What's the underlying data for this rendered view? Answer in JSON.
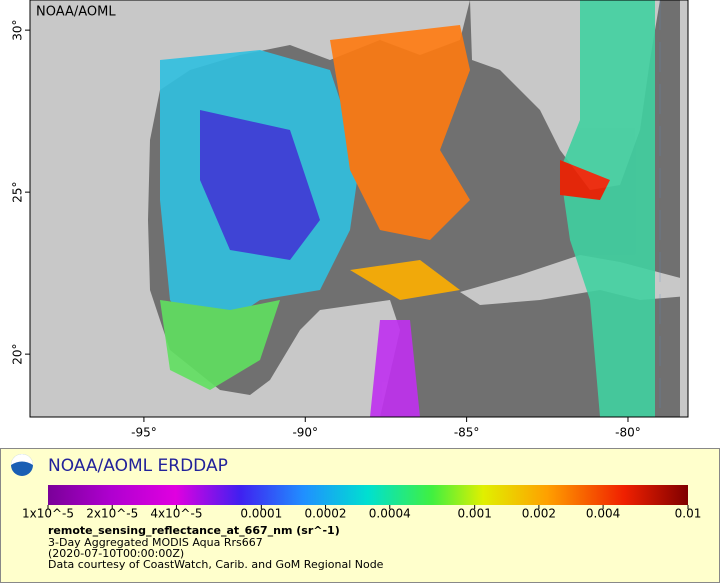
{
  "map": {
    "watermark": "NOAA/AOML",
    "lonlim": [
      -98.53,
      -78.14
    ],
    "latlim": [
      18.06,
      30.93
    ],
    "lon_ticks": [
      {
        "value": -95,
        "label": "-95°"
      },
      {
        "value": -90,
        "label": "-90°"
      },
      {
        "value": -85,
        "label": "-85°"
      },
      {
        "value": -80,
        "label": "-80°"
      }
    ],
    "lat_ticks": [
      {
        "value": 20,
        "label": "20°"
      },
      {
        "value": 25,
        "label": "25°"
      },
      {
        "value": 30,
        "label": "30°"
      }
    ]
  },
  "legend": {
    "title": "NOAA/AOML ERDDAP",
    "colorbar": {
      "lim": [
        1e-05,
        0.01
      ],
      "log": true,
      "ticks": [
        {
          "value": 1e-05,
          "label": "1x10^-5"
        },
        {
          "value": 2e-05,
          "label": "2x10^-5"
        },
        {
          "value": 4e-05,
          "label": "4x10^-5"
        },
        0.0001,
        0.0002,
        0.0004,
        0.001,
        0.002,
        0.004,
        0.01
      ]
    },
    "variable": "remote_sensing_reflectance_at_667_nm (sr^-1)",
    "lines": [
      "3-Day Aggregated MODIS Aqua Rrs667",
      "(2020-07-10T00:00:00Z)",
      "Data courtesy of CoastWatch, Carib. and GoM Regional Node"
    ]
  }
}
